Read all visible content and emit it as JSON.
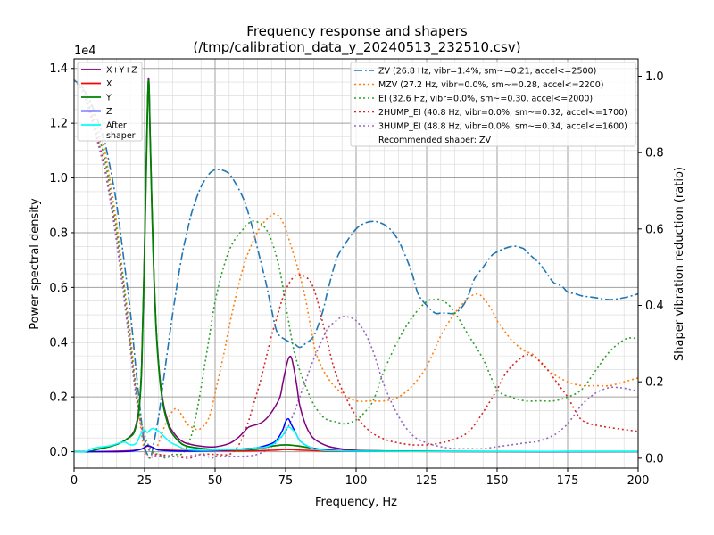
{
  "chart_data": {
    "type": "line",
    "title": "Frequency response and shapers",
    "subtitle": "(/tmp/calibration_data_y_20240513_232510.csv)",
    "xlabel": "Frequency, Hz",
    "ylabel": "Power spectral density",
    "y2label": "Shaper vibration reduction (ratio)",
    "xlim": [
      0,
      200
    ],
    "ylim": [
      -600,
      14350
    ],
    "y2lim": [
      -0.026,
      1.0455
    ],
    "y_exponent": "1e4",
    "x_ticks": [
      0,
      25,
      50,
      75,
      100,
      125,
      150,
      175,
      200
    ],
    "y_ticks": [
      0,
      2000,
      4000,
      6000,
      8000,
      10000,
      12000,
      14000
    ],
    "y_tick_labels": [
      "0.0",
      "0.2",
      "0.4",
      "0.6",
      "0.8",
      "1.0",
      "1.2",
      "1.4"
    ],
    "y2_ticks": [
      0,
      0.2,
      0.4,
      0.6,
      0.8,
      1.0
    ],
    "y2_tick_labels": [
      "0.0",
      "0.2",
      "0.4",
      "0.6",
      "0.8",
      "1.0"
    ],
    "grid": true,
    "legend_left": {
      "placement": "top-left",
      "entries": [
        {
          "label": "X+Y+Z",
          "color": "#800080"
        },
        {
          "label": "X",
          "color": "#ff0000"
        },
        {
          "label": "Y",
          "color": "#008000"
        },
        {
          "label": "Z",
          "color": "#0000ff"
        },
        {
          "label": "After",
          "label2": "shaper",
          "color": "#00ffff"
        }
      ]
    },
    "legend_right": {
      "placement": "top-right",
      "entries": [
        {
          "label": "ZV (26.8 Hz, vibr=1.4%, sm~=0.21, accel<=2500)",
          "color": "#1f77b4",
          "dash": "dashdot"
        },
        {
          "label": "MZV (27.2 Hz, vibr=0.0%, sm~=0.28, accel<=2200)",
          "color": "#ff7f0e",
          "dash": "dot"
        },
        {
          "label": "EI (32.6 Hz, vibr=0.0%, sm~=0.30, accel<=2000)",
          "color": "#2ca02c",
          "dash": "dot"
        },
        {
          "label": "2HUMP_EI (40.8 Hz, vibr=0.0%, sm~=0.32, accel<=1700)",
          "color": "#d62728",
          "dash": "dot"
        },
        {
          "label": "3HUMP_EI (48.8 Hz, vibr=0.0%, sm~=0.34, accel<=1600)",
          "color": "#9467bd",
          "dash": "dot"
        }
      ],
      "note": "Recommended shaper: ZV"
    },
    "psd_series": [
      {
        "name": "X+Y+Z",
        "color": "#800080",
        "width": 1.5,
        "x": [
          0,
          5,
          8,
          11,
          14,
          17,
          19,
          21,
          22,
          23,
          24,
          25,
          26,
          26.5,
          27,
          28,
          29,
          30,
          31,
          32,
          33,
          34,
          36,
          38,
          40,
          45,
          50,
          55,
          58,
          60,
          62,
          65,
          67,
          69,
          71,
          73,
          74,
          75,
          76,
          77,
          78,
          79,
          80,
          82,
          84,
          86,
          90,
          95,
          100,
          110,
          120,
          140,
          160,
          180,
          200
        ],
        "y": [
          0,
          0,
          80,
          150,
          230,
          350,
          480,
          700,
          1000,
          1600,
          3200,
          7500,
          12500,
          13600,
          11500,
          7500,
          4800,
          3200,
          2200,
          1600,
          1200,
          900,
          600,
          400,
          300,
          200,
          180,
          300,
          500,
          700,
          900,
          1000,
          1100,
          1300,
          1600,
          2000,
          2500,
          3000,
          3400,
          3450,
          3000,
          2400,
          1700,
          1000,
          600,
          400,
          200,
          100,
          50,
          30,
          20,
          10,
          10,
          10,
          10
        ]
      },
      {
        "name": "X",
        "color": "#ff0000",
        "width": 1.5,
        "x": [
          0,
          10,
          20,
          24,
          26,
          28,
          30,
          40,
          60,
          70,
          75,
          80,
          90,
          100,
          150,
          200
        ],
        "y": [
          0,
          10,
          40,
          100,
          200,
          150,
          80,
          40,
          30,
          50,
          80,
          60,
          20,
          10,
          5,
          5
        ]
      },
      {
        "name": "Y",
        "color": "#008000",
        "width": 1.8,
        "x": [
          0,
          5,
          8,
          11,
          14,
          17,
          19,
          21,
          22,
          23,
          24,
          25,
          26,
          26.5,
          27,
          28,
          29,
          30,
          31,
          32,
          33,
          34,
          36,
          38,
          40,
          45,
          50,
          55,
          60,
          65,
          70,
          75,
          80,
          85,
          90,
          100,
          150,
          200
        ],
        "y": [
          0,
          0,
          80,
          150,
          230,
          350,
          480,
          650,
          950,
          1500,
          3100,
          7400,
          12400,
          13500,
          11400,
          7400,
          4700,
          3100,
          2100,
          1500,
          1100,
          800,
          500,
          300,
          200,
          120,
          80,
          70,
          70,
          100,
          200,
          250,
          200,
          120,
          60,
          30,
          10,
          10
        ]
      },
      {
        "name": "Z",
        "color": "#0000ff",
        "width": 1.5,
        "x": [
          0,
          15,
          20,
          24,
          26,
          28,
          30,
          35,
          40,
          50,
          60,
          65,
          70,
          72,
          74,
          75,
          76,
          77,
          78,
          79,
          80,
          82,
          84,
          86,
          90,
          95,
          100,
          110,
          120,
          150,
          200
        ],
        "y": [
          0,
          0,
          20,
          100,
          220,
          150,
          60,
          30,
          20,
          40,
          100,
          150,
          300,
          450,
          800,
          1100,
          1200,
          1000,
          800,
          600,
          400,
          250,
          150,
          100,
          60,
          40,
          20,
          10,
          10,
          5,
          5
        ]
      },
      {
        "name": "After shaper",
        "color": "#00ffff",
        "width": 1.5,
        "x": [
          0,
          4,
          6,
          8,
          10,
          12,
          14,
          16,
          18,
          20,
          22,
          23,
          24,
          25,
          26,
          27,
          28,
          29,
          30,
          31,
          32,
          34,
          36,
          38,
          40,
          45,
          50,
          55,
          60,
          62,
          65,
          67,
          69,
          71,
          72,
          74,
          75,
          76,
          77,
          78,
          79,
          80,
          82,
          84,
          86,
          90,
          100,
          120,
          150,
          200
        ],
        "y": [
          0,
          0,
          100,
          150,
          180,
          200,
          250,
          320,
          350,
          250,
          300,
          500,
          700,
          800,
          700,
          800,
          850,
          800,
          750,
          650,
          550,
          350,
          250,
          150,
          80,
          50,
          60,
          80,
          80,
          100,
          150,
          150,
          200,
          300,
          400,
          600,
          800,
          900,
          850,
          750,
          600,
          400,
          250,
          150,
          80,
          40,
          20,
          10,
          10,
          10
        ]
      }
    ],
    "shaper_series": [
      {
        "name": "ZV",
        "color": "#1f77b4",
        "dash": "dashdot",
        "x": [
          0,
          3,
          6,
          10,
          12,
          15,
          18,
          20,
          22,
          24,
          25,
          26,
          26.8,
          27.5,
          28,
          30,
          32,
          35,
          38,
          40,
          42,
          45,
          48,
          50,
          52,
          54,
          56,
          60,
          63,
          66,
          68,
          70,
          72,
          75,
          78,
          80,
          82,
          85,
          88,
          90,
          93,
          96,
          100,
          103,
          106,
          109,
          112,
          115,
          118,
          120,
          122,
          125,
          128,
          130,
          132,
          135,
          138,
          140,
          142,
          145,
          148,
          150,
          153,
          156,
          159,
          160,
          162,
          165,
          168,
          170,
          173,
          175,
          178,
          180,
          185,
          190,
          195,
          200
        ],
        "y": [
          0.99,
          0.97,
          0.93,
          0.85,
          0.79,
          0.67,
          0.5,
          0.38,
          0.23,
          0.09,
          0.03,
          0.01,
          0.0,
          0.01,
          0.03,
          0.11,
          0.22,
          0.38,
          0.52,
          0.59,
          0.65,
          0.71,
          0.745,
          0.755,
          0.755,
          0.75,
          0.735,
          0.68,
          0.61,
          0.52,
          0.46,
          0.39,
          0.33,
          0.31,
          0.3,
          0.29,
          0.3,
          0.32,
          0.38,
          0.44,
          0.52,
          0.56,
          0.6,
          0.615,
          0.62,
          0.615,
          0.6,
          0.57,
          0.52,
          0.48,
          0.43,
          0.4,
          0.38,
          0.38,
          0.38,
          0.38,
          0.4,
          0.43,
          0.47,
          0.5,
          0.53,
          0.54,
          0.55,
          0.555,
          0.55,
          0.545,
          0.53,
          0.51,
          0.48,
          0.46,
          0.45,
          0.435,
          0.43,
          0.425,
          0.42,
          0.415,
          0.42,
          0.43
        ]
      },
      {
        "name": "MZV",
        "color": "#ff7f0e",
        "dash": "dot",
        "x": [
          0,
          3,
          6,
          10,
          12,
          15,
          18,
          20,
          22,
          24,
          25,
          26,
          27.2,
          28,
          30,
          33,
          36,
          38,
          40,
          42,
          44,
          46,
          48,
          50,
          53,
          56,
          60,
          63,
          66,
          69,
          71,
          73,
          75,
          78,
          80,
          82,
          84,
          86,
          90,
          95,
          100,
          105,
          110,
          115,
          120,
          125,
          130,
          135,
          140,
          143,
          145,
          148,
          150,
          152,
          155,
          158,
          160,
          163,
          166,
          170,
          175,
          180,
          185,
          190,
          195,
          200
        ],
        "y": [
          0.99,
          0.97,
          0.92,
          0.83,
          0.76,
          0.62,
          0.44,
          0.32,
          0.18,
          0.06,
          0.02,
          0.005,
          0.0,
          0.01,
          0.04,
          0.1,
          0.13,
          0.115,
          0.09,
          0.08,
          0.075,
          0.085,
          0.11,
          0.17,
          0.27,
          0.38,
          0.5,
          0.56,
          0.605,
          0.63,
          0.64,
          0.63,
          0.6,
          0.53,
          0.48,
          0.42,
          0.34,
          0.27,
          0.21,
          0.17,
          0.15,
          0.15,
          0.15,
          0.16,
          0.19,
          0.24,
          0.32,
          0.38,
          0.42,
          0.43,
          0.42,
          0.39,
          0.36,
          0.34,
          0.31,
          0.29,
          0.28,
          0.27,
          0.245,
          0.22,
          0.2,
          0.19,
          0.19,
          0.19,
          0.2,
          0.21
        ]
      },
      {
        "name": "EI",
        "color": "#2ca02c",
        "dash": "dot",
        "x": [
          0,
          3,
          6,
          10,
          12,
          15,
          18,
          20,
          22,
          24,
          26,
          28,
          30,
          32.6,
          35,
          38,
          40,
          42,
          44,
          46,
          48,
          50,
          53,
          56,
          60,
          63,
          66,
          68,
          70,
          73,
          76,
          78,
          80,
          82,
          85,
          88,
          90,
          93,
          96,
          100,
          103,
          106,
          110,
          115,
          120,
          125,
          128,
          130,
          133,
          136,
          140,
          145,
          150,
          155,
          160,
          165,
          170,
          175,
          180,
          185,
          190,
          195,
          198,
          200
        ],
        "y": [
          0.99,
          0.97,
          0.91,
          0.81,
          0.74,
          0.6,
          0.43,
          0.3,
          0.18,
          0.09,
          0.04,
          0.015,
          0.01,
          0.0,
          0.01,
          0.01,
          0.03,
          0.07,
          0.14,
          0.23,
          0.32,
          0.41,
          0.5,
          0.56,
          0.6,
          0.62,
          0.615,
          0.6,
          0.57,
          0.49,
          0.36,
          0.28,
          0.23,
          0.19,
          0.14,
          0.11,
          0.1,
          0.095,
          0.09,
          0.1,
          0.12,
          0.15,
          0.23,
          0.31,
          0.37,
          0.41,
          0.415,
          0.415,
          0.4,
          0.37,
          0.32,
          0.26,
          0.18,
          0.16,
          0.15,
          0.15,
          0.15,
          0.16,
          0.18,
          0.23,
          0.28,
          0.31,
          0.315,
          0.31
        ]
      },
      {
        "name": "2HUMP_EI",
        "color": "#d62728",
        "dash": "dot",
        "x": [
          0,
          3,
          6,
          10,
          12,
          15,
          18,
          20,
          22,
          24,
          26,
          28,
          30,
          35,
          40.8,
          45,
          50,
          55,
          58,
          60,
          62,
          64,
          66,
          68,
          70,
          72,
          74,
          76,
          78,
          80,
          82,
          84,
          86,
          88,
          90,
          92,
          95,
          100,
          105,
          110,
          115,
          120,
          125,
          130,
          135,
          140,
          145,
          150,
          152,
          155,
          158,
          160,
          162,
          165,
          168,
          170,
          172,
          175,
          178,
          180,
          183,
          186,
          190,
          195,
          200
        ],
        "y": [
          0.99,
          0.96,
          0.9,
          0.79,
          0.72,
          0.58,
          0.41,
          0.29,
          0.17,
          0.08,
          0.03,
          0.01,
          0.01,
          0.005,
          0.0,
          0.01,
          0.01,
          0.01,
          0.03,
          0.06,
          0.1,
          0.15,
          0.2,
          0.26,
          0.32,
          0.37,
          0.42,
          0.455,
          0.475,
          0.48,
          0.475,
          0.46,
          0.42,
          0.36,
          0.3,
          0.24,
          0.18,
          0.11,
          0.07,
          0.05,
          0.04,
          0.035,
          0.035,
          0.04,
          0.05,
          0.07,
          0.12,
          0.18,
          0.21,
          0.24,
          0.26,
          0.27,
          0.27,
          0.255,
          0.23,
          0.21,
          0.19,
          0.16,
          0.12,
          0.1,
          0.09,
          0.085,
          0.08,
          0.075,
          0.07
        ]
      },
      {
        "name": "3HUMP_EI",
        "color": "#9467bd",
        "dash": "dot",
        "x": [
          0,
          3,
          6,
          10,
          12,
          15,
          18,
          20,
          22,
          24,
          26,
          28,
          30,
          35,
          40,
          45,
          48.8,
          50,
          55,
          60,
          65,
          70,
          75,
          78,
          80,
          82,
          85,
          88,
          90,
          93,
          95,
          97,
          100,
          103,
          106,
          110,
          115,
          120,
          125,
          130,
          135,
          140,
          145,
          150,
          155,
          160,
          165,
          170,
          172,
          175,
          178,
          180,
          183,
          186,
          190,
          193,
          196,
          200
        ],
        "y": [
          0.99,
          0.96,
          0.89,
          0.78,
          0.71,
          0.57,
          0.4,
          0.28,
          0.16,
          0.08,
          0.03,
          0.01,
          0.005,
          0.005,
          0.005,
          0.01,
          0.0,
          0.005,
          0.005,
          0.005,
          0.01,
          0.03,
          0.07,
          0.12,
          0.16,
          0.2,
          0.26,
          0.31,
          0.34,
          0.36,
          0.37,
          0.37,
          0.36,
          0.33,
          0.28,
          0.19,
          0.11,
          0.06,
          0.04,
          0.03,
          0.025,
          0.025,
          0.025,
          0.03,
          0.035,
          0.04,
          0.045,
          0.06,
          0.07,
          0.09,
          0.12,
          0.14,
          0.16,
          0.175,
          0.185,
          0.185,
          0.182,
          0.175
        ]
      }
    ]
  }
}
